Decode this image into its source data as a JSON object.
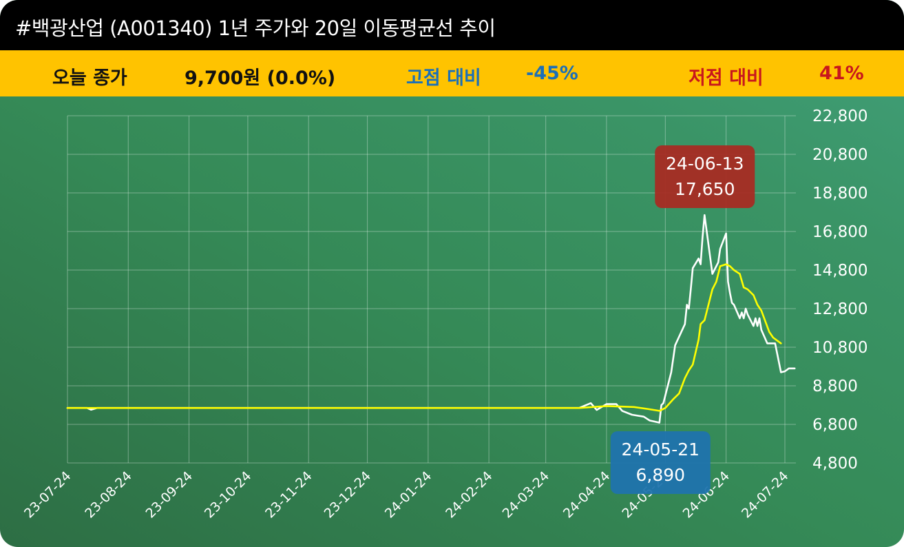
{
  "header": {
    "title": "#백광산업 (A001340) 1년 주가와 20일 이동평균선 추이"
  },
  "info": {
    "close_label": "오늘 종가",
    "close_value": "9,700원 (0.0%)",
    "high_label": "고점 대비",
    "high_value": "-45%",
    "low_label": "저점 대비",
    "low_value": "41%"
  },
  "colors": {
    "title_bar": "#000000",
    "info_bar": "#ffc300",
    "close_text": "#111111",
    "high_text": "#1b6fb8",
    "low_text": "#c8161d",
    "price_line": "#ffffff",
    "ma_line": "#ffff00",
    "high_box": "#a82a22",
    "low_box": "#1f73ad"
  },
  "chart_data": {
    "type": "line",
    "title": "",
    "xlabel": "",
    "ylabel": "",
    "ylim": [
      4800,
      22800
    ],
    "yticks": [
      "4,800",
      "6,800",
      "8,800",
      "10,800",
      "12,800",
      "14,800",
      "16,800",
      "18,800",
      "20,800",
      "22,800"
    ],
    "xticks": [
      "23-07-24",
      "23-08-24",
      "23-09-24",
      "23-10-24",
      "23-11-24",
      "23-12-24",
      "24-01-24",
      "24-02-24",
      "24-03-24",
      "24-04-24",
      "24-05-24",
      "24-06-24",
      "24-07-24"
    ],
    "grid": true,
    "series": [
      {
        "name": "price",
        "points": [
          [
            "23-07-24",
            7650
          ],
          [
            "23-08-03",
            7650
          ],
          [
            "23-08-05",
            7560
          ],
          [
            "23-08-08",
            7650
          ],
          [
            "24-04-10",
            7650
          ],
          [
            "24-04-16",
            7900
          ],
          [
            "24-04-19",
            7550
          ],
          [
            "24-04-24",
            7850
          ],
          [
            "24-04-29",
            7850
          ],
          [
            "24-05-02",
            7500
          ],
          [
            "24-05-07",
            7300
          ],
          [
            "24-05-13",
            7200
          ],
          [
            "24-05-16",
            7000
          ],
          [
            "24-05-21",
            6890
          ],
          [
            "24-05-22",
            7800
          ],
          [
            "24-05-23",
            7900
          ],
          [
            "24-05-27",
            9500
          ],
          [
            "24-05-29",
            10900
          ],
          [
            "24-06-03",
            12000
          ],
          [
            "24-06-04",
            13000
          ],
          [
            "24-06-05",
            12800
          ],
          [
            "24-06-06",
            13800
          ],
          [
            "24-06-07",
            14900
          ],
          [
            "24-06-10",
            15400
          ],
          [
            "24-06-11",
            15100
          ],
          [
            "24-06-12",
            16500
          ],
          [
            "24-06-13",
            17650
          ],
          [
            "24-06-14",
            16900
          ],
          [
            "24-06-17",
            14600
          ],
          [
            "24-06-18",
            14800
          ],
          [
            "24-06-19",
            15000
          ],
          [
            "24-06-20",
            15200
          ],
          [
            "24-06-21",
            15900
          ],
          [
            "24-06-24",
            16700
          ],
          [
            "24-06-25",
            14200
          ],
          [
            "24-06-26",
            13600
          ],
          [
            "24-06-27",
            13100
          ],
          [
            "24-06-28",
            13000
          ],
          [
            "24-07-01",
            12300
          ],
          [
            "24-07-02",
            12600
          ],
          [
            "24-07-03",
            12300
          ],
          [
            "24-07-04",
            12800
          ],
          [
            "24-07-05",
            12500
          ],
          [
            "24-07-08",
            11900
          ],
          [
            "24-07-09",
            12300
          ],
          [
            "24-07-10",
            11900
          ],
          [
            "24-07-11",
            12300
          ],
          [
            "24-07-12",
            11700
          ],
          [
            "24-07-15",
            11000
          ],
          [
            "24-07-17",
            11000
          ],
          [
            "24-07-19",
            11000
          ],
          [
            "24-07-22",
            9500
          ],
          [
            "24-07-24",
            9550
          ],
          [
            "24-07-26",
            9700
          ],
          [
            "24-07-29",
            9700
          ]
        ]
      },
      {
        "name": "ma20",
        "points": [
          [
            "23-07-24",
            7650
          ],
          [
            "24-04-10",
            7650
          ],
          [
            "24-04-24",
            7750
          ],
          [
            "24-05-08",
            7700
          ],
          [
            "24-05-15",
            7600
          ],
          [
            "24-05-21",
            7500
          ],
          [
            "24-05-24",
            7650
          ],
          [
            "24-05-28",
            8100
          ],
          [
            "24-05-31",
            8400
          ],
          [
            "24-06-03",
            9200
          ],
          [
            "24-06-05",
            9600
          ],
          [
            "24-06-07",
            9900
          ],
          [
            "24-06-10",
            11200
          ],
          [
            "24-06-11",
            12000
          ],
          [
            "24-06-13",
            12200
          ],
          [
            "24-06-17",
            13800
          ],
          [
            "24-06-19",
            14200
          ],
          [
            "24-06-21",
            15000
          ],
          [
            "24-06-24",
            15100
          ],
          [
            "24-06-26",
            15000
          ],
          [
            "24-06-28",
            14800
          ],
          [
            "24-07-01",
            14600
          ],
          [
            "24-07-03",
            13900
          ],
          [
            "24-07-05",
            13800
          ],
          [
            "24-07-08",
            13500
          ],
          [
            "24-07-10",
            13000
          ],
          [
            "24-07-12",
            12700
          ],
          [
            "24-07-16",
            11600
          ],
          [
            "24-07-18",
            11300
          ],
          [
            "24-07-22",
            11000
          ]
        ]
      }
    ],
    "annotations": [
      {
        "kind": "high",
        "date": "24-06-13",
        "value": 17650,
        "label_date": "24-06-13",
        "label_value": "17,650"
      },
      {
        "kind": "low",
        "date": "24-05-21",
        "value": 6890,
        "label_date": "24-05-21",
        "label_value": "6,890"
      }
    ]
  }
}
